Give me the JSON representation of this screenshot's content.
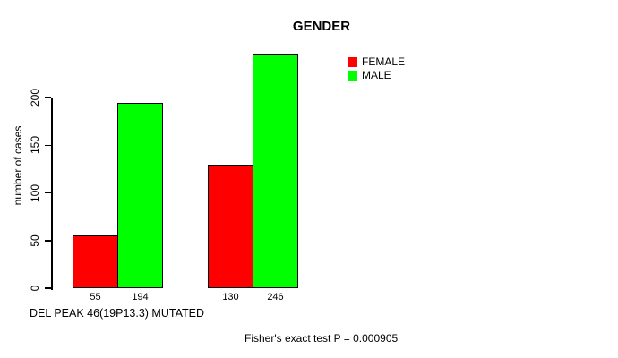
{
  "chart_data": {
    "type": "bar",
    "title": "GENDER",
    "ylabel": "number of cases",
    "xlabel": "",
    "yticks": [
      0,
      50,
      100,
      150,
      200
    ],
    "ylim": [
      0,
      250
    ],
    "grid": false,
    "legend_position": "top-right",
    "groups": 2,
    "series": [
      {
        "name": "FEMALE",
        "color": "#FF0000",
        "values": [
          55,
          130
        ]
      },
      {
        "name": "MALE",
        "color": "#00FF00",
        "values": [
          194,
          246
        ]
      }
    ],
    "bar_value_labels": [
      "55",
      "194",
      "130",
      "246"
    ],
    "group_caption": "DEL PEAK 46(19P13.3) MUTATED",
    "annotation": "Fisher's exact test P = 0.000905"
  }
}
